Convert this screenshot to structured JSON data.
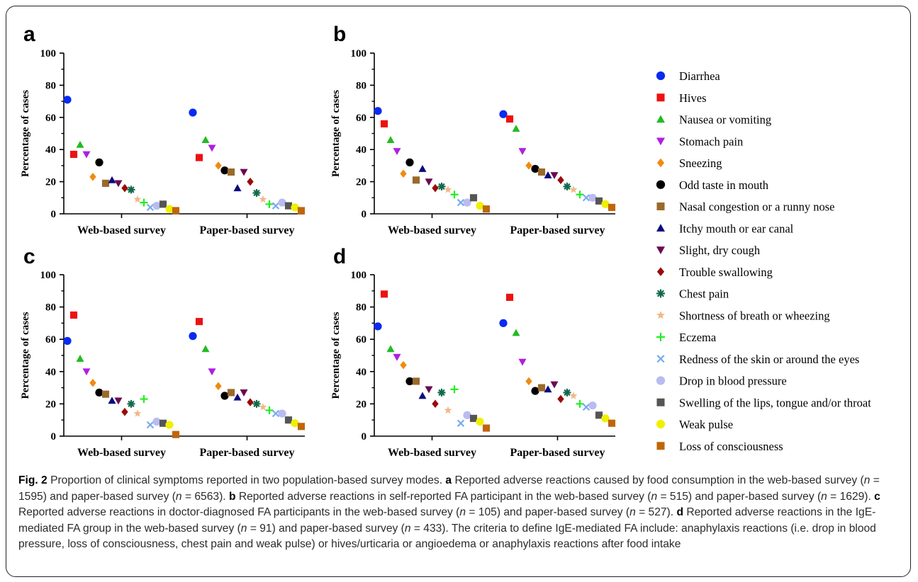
{
  "symbols": [
    {
      "name": "Diarrhea",
      "color": "#0a2af0",
      "shape": "circle"
    },
    {
      "name": "Hives",
      "color": "#ee1111",
      "shape": "square"
    },
    {
      "name": "Nausea or vomiting",
      "color": "#22bb22",
      "shape": "triangle"
    },
    {
      "name": "Stomach pain",
      "color": "#b01fe0",
      "shape": "triangle-down"
    },
    {
      "name": "Sneezing",
      "color": "#f08a10",
      "shape": "diamond"
    },
    {
      "name": "Odd taste in mouth",
      "color": "#000000",
      "shape": "circle"
    },
    {
      "name": "Nasal congestion or a runny nose",
      "color": "#9a6a2a",
      "shape": "square"
    },
    {
      "name": "Itchy mouth or ear canal",
      "color": "#0a0a80",
      "shape": "triangle"
    },
    {
      "name": "Slight, dry cough",
      "color": "#6a0a50",
      "shape": "triangle-down"
    },
    {
      "name": "Trouble swallowing",
      "color": "#9a0a0a",
      "shape": "diamond"
    },
    {
      "name": "Chest pain",
      "color": "#0f6a4a",
      "shape": "asterisk"
    },
    {
      "name": "Shortness of breath or wheezing",
      "color": "#f0b888",
      "shape": "star"
    },
    {
      "name": "Eczema",
      "color": "#22ee22",
      "shape": "plus"
    },
    {
      "name": "Redness of the skin or around the eyes",
      "color": "#7aaaf0",
      "shape": "cross"
    },
    {
      "name": "Drop in blood pressure",
      "color": "#b8bcf0",
      "shape": "circle"
    },
    {
      "name": "Swelling of the lips, tongue and/or throat",
      "color": "#555555",
      "shape": "square"
    },
    {
      "name": "Weak pulse",
      "color": "#f0f000",
      "shape": "circle"
    },
    {
      "name": "Loss of consciousness",
      "color": "#c0650a",
      "shape": "square"
    }
  ],
  "chart_data": [
    {
      "panel": "a",
      "type": "scatter",
      "categories": [
        "Web-based survey",
        "Paper-based survey"
      ],
      "ylabel": "Percentage of cases",
      "ylim": [
        0,
        100
      ],
      "yticks": [
        0,
        20,
        40,
        60,
        80,
        100
      ],
      "series": [
        {
          "name": "Diarrhea",
          "values": [
            71,
            63
          ]
        },
        {
          "name": "Hives",
          "values": [
            37,
            35
          ]
        },
        {
          "name": "Nausea or vomiting",
          "values": [
            43,
            46
          ]
        },
        {
          "name": "Stomach pain",
          "values": [
            37,
            41
          ]
        },
        {
          "name": "Sneezing",
          "values": [
            23,
            30
          ]
        },
        {
          "name": "Odd taste in mouth",
          "values": [
            32,
            27
          ]
        },
        {
          "name": "Nasal congestion or a runny nose",
          "values": [
            19,
            26
          ]
        },
        {
          "name": "Itchy mouth or ear canal",
          "values": [
            21,
            16
          ]
        },
        {
          "name": "Slight, dry cough",
          "values": [
            19,
            26
          ]
        },
        {
          "name": "Trouble swallowing",
          "values": [
            16,
            20
          ]
        },
        {
          "name": "Chest pain",
          "values": [
            15,
            13
          ]
        },
        {
          "name": "Shortness of breath or wheezing",
          "values": [
            9,
            9
          ]
        },
        {
          "name": "Eczema",
          "values": [
            7,
            6
          ]
        },
        {
          "name": "Redness of the skin or around the eyes",
          "values": [
            4,
            5
          ]
        },
        {
          "name": "Drop in blood pressure",
          "values": [
            5,
            7
          ]
        },
        {
          "name": "Swelling of the lips, tongue and/or throat",
          "values": [
            6,
            5
          ]
        },
        {
          "name": "Weak pulse",
          "values": [
            3,
            4
          ]
        },
        {
          "name": "Loss of consciousness",
          "values": [
            2,
            2
          ]
        }
      ]
    },
    {
      "panel": "b",
      "type": "scatter",
      "categories": [
        "Web-based survey",
        "Paper-based survey"
      ],
      "ylabel": "Percentage of cases",
      "ylim": [
        0,
        100
      ],
      "yticks": [
        0,
        20,
        40,
        60,
        80,
        100
      ],
      "series": [
        {
          "name": "Diarrhea",
          "values": [
            64,
            62
          ]
        },
        {
          "name": "Hives",
          "values": [
            56,
            59
          ]
        },
        {
          "name": "Nausea or vomiting",
          "values": [
            46,
            53
          ]
        },
        {
          "name": "Stomach pain",
          "values": [
            39,
            39
          ]
        },
        {
          "name": "Sneezing",
          "values": [
            25,
            30
          ]
        },
        {
          "name": "Odd taste in mouth",
          "values": [
            32,
            28
          ]
        },
        {
          "name": "Nasal congestion or a runny nose",
          "values": [
            21,
            26
          ]
        },
        {
          "name": "Itchy mouth or ear canal",
          "values": [
            28,
            24
          ]
        },
        {
          "name": "Slight, dry cough",
          "values": [
            20,
            24
          ]
        },
        {
          "name": "Trouble swallowing",
          "values": [
            16,
            21
          ]
        },
        {
          "name": "Chest pain",
          "values": [
            17,
            17
          ]
        },
        {
          "name": "Shortness of breath or wheezing",
          "values": [
            15,
            15
          ]
        },
        {
          "name": "Eczema",
          "values": [
            12,
            12
          ]
        },
        {
          "name": "Redness of the skin or around the eyes",
          "values": [
            7,
            10
          ]
        },
        {
          "name": "Drop in blood pressure",
          "values": [
            7,
            10
          ]
        },
        {
          "name": "Swelling of the lips, tongue and/or throat",
          "values": [
            10,
            8
          ]
        },
        {
          "name": "Weak pulse",
          "values": [
            5,
            6
          ]
        },
        {
          "name": "Loss of consciousness",
          "values": [
            3,
            4
          ]
        }
      ]
    },
    {
      "panel": "c",
      "type": "scatter",
      "categories": [
        "Web-based survey",
        "Paper-based survey"
      ],
      "ylabel": "Percentage of cases",
      "ylim": [
        0,
        100
      ],
      "yticks": [
        0,
        20,
        40,
        60,
        80,
        100
      ],
      "series": [
        {
          "name": "Diarrhea",
          "values": [
            59,
            62
          ]
        },
        {
          "name": "Hives",
          "values": [
            75,
            71
          ]
        },
        {
          "name": "Nausea or vomiting",
          "values": [
            48,
            54
          ]
        },
        {
          "name": "Stomach pain",
          "values": [
            40,
            40
          ]
        },
        {
          "name": "Sneezing",
          "values": [
            33,
            31
          ]
        },
        {
          "name": "Odd taste in mouth",
          "values": [
            27,
            25
          ]
        },
        {
          "name": "Nasal congestion or a runny nose",
          "values": [
            26,
            27
          ]
        },
        {
          "name": "Itchy mouth or ear canal",
          "values": [
            22,
            24
          ]
        },
        {
          "name": "Slight, dry cough",
          "values": [
            22,
            27
          ]
        },
        {
          "name": "Trouble swallowing",
          "values": [
            15,
            21
          ]
        },
        {
          "name": "Chest pain",
          "values": [
            20,
            20
          ]
        },
        {
          "name": "Shortness of breath or wheezing",
          "values": [
            14,
            18
          ]
        },
        {
          "name": "Eczema",
          "values": [
            23,
            16
          ]
        },
        {
          "name": "Redness of the skin or around the eyes",
          "values": [
            7,
            14
          ]
        },
        {
          "name": "Drop in blood pressure",
          "values": [
            9,
            14
          ]
        },
        {
          "name": "Swelling of the lips, tongue and/or throat",
          "values": [
            8,
            10
          ]
        },
        {
          "name": "Weak pulse",
          "values": [
            7,
            8
          ]
        },
        {
          "name": "Loss of consciousness",
          "values": [
            1,
            6
          ]
        }
      ]
    },
    {
      "panel": "d",
      "type": "scatter",
      "categories": [
        "Web-based survey",
        "Paper-based survey"
      ],
      "ylabel": "Percentage of cases",
      "ylim": [
        0,
        100
      ],
      "yticks": [
        0,
        20,
        40,
        60,
        80,
        100
      ],
      "series": [
        {
          "name": "Diarrhea",
          "values": [
            68,
            70
          ]
        },
        {
          "name": "Hives",
          "values": [
            88,
            86
          ]
        },
        {
          "name": "Nausea or vomiting",
          "values": [
            54,
            64
          ]
        },
        {
          "name": "Stomach pain",
          "values": [
            49,
            46
          ]
        },
        {
          "name": "Sneezing",
          "values": [
            44,
            34
          ]
        },
        {
          "name": "Odd taste in mouth",
          "values": [
            34,
            28
          ]
        },
        {
          "name": "Nasal congestion or a runny nose",
          "values": [
            34,
            30
          ]
        },
        {
          "name": "Itchy mouth or ear canal",
          "values": [
            25,
            29
          ]
        },
        {
          "name": "Slight, dry cough",
          "values": [
            29,
            32
          ]
        },
        {
          "name": "Trouble swallowing",
          "values": [
            20,
            23
          ]
        },
        {
          "name": "Chest pain",
          "values": [
            27,
            27
          ]
        },
        {
          "name": "Shortness of breath or wheezing",
          "values": [
            16,
            25
          ]
        },
        {
          "name": "Eczema",
          "values": [
            29,
            20
          ]
        },
        {
          "name": "Redness of the skin or around the eyes",
          "values": [
            8,
            18
          ]
        },
        {
          "name": "Drop in blood pressure",
          "values": [
            13,
            19
          ]
        },
        {
          "name": "Swelling of the lips, tongue and/or throat",
          "values": [
            11,
            13
          ]
        },
        {
          "name": "Weak pulse",
          "values": [
            9,
            11
          ]
        },
        {
          "name": "Loss of consciousness",
          "values": [
            5,
            8
          ]
        }
      ]
    }
  ],
  "caption": {
    "fig_label": "Fig. 2",
    "title": "Proportion of clinical symptoms reported in two population-based survey modes.",
    "a_label": "a",
    "a_text1": "Reported adverse reactions caused by food consumption in the web-based survey (",
    "a_n1": "n",
    "a_v1": " = 1595) and paper-based survey (",
    "a_n2": "n",
    "a_v2": " = 6563).",
    "b_label": "b",
    "b_text1": "Reported adverse reactions in self-reported FA participant in the web-based survey (",
    "b_n1": "n",
    "b_v1": " = 515) and paper-based survey (",
    "b_n2": "n",
    "b_v2": " = 1629).",
    "c_label": "c",
    "c_text1": "Reported adverse reactions in doctor-diagnosed FA participants in the web-based survey (",
    "c_n1": "n",
    "c_v1": " = 105) and paper-based survey (",
    "c_n2": "n",
    "c_v2": " = 527).",
    "d_label": "d",
    "d_text1": "Reported adverse reactions in the IgE-mediated FA group in the web-based survey (",
    "d_n1": "n",
    "d_v1": " = 91) and paper-based survey (",
    "d_n2": "n",
    "d_v2": " = 433). The criteria to define IgE-mediated FA include: anaphylaxis reactions (i.e. drop in blood pressure, loss of consciousness, chest pain and weak pulse) or hives/urticaria or angioedema or anaphylaxis reactions after food intake"
  }
}
